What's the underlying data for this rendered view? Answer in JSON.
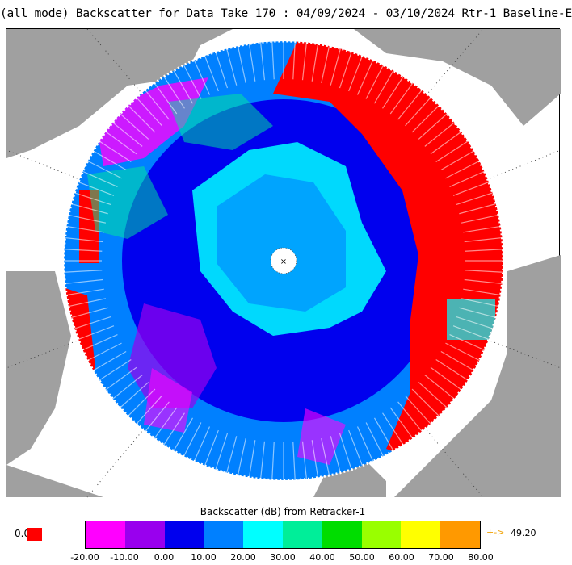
{
  "title": "(all mode) Backscatter for Data Take 170 : 04/09/2024 - 03/10/2024 Rtr-1 Baseline-E",
  "colors": {
    "land": "#a0a0a0",
    "ocean": "#ffffff",
    "open_water_high": "#ff0000",
    "pole_hole": "#ffffff"
  },
  "legend": {
    "title": "Backscatter (dB) from Retracker-1",
    "zero_label": "0.0",
    "zero_color": "#ff0000",
    "over_arrow": "+->",
    "over_value": "49.20",
    "ticks": [
      "-20.00",
      "-10.00",
      "0.00",
      "10.00",
      "20.00",
      "30.00",
      "40.00",
      "50.00",
      "60.00",
      "70.00",
      "80.00"
    ],
    "colors": [
      "#ff00ff",
      "#9900ee",
      "#0000ee",
      "#0080ff",
      "#00ffff",
      "#00ee99",
      "#00dd00",
      "#99ff00",
      "#ffff00",
      "#ff9900"
    ]
  },
  "map_markers": {
    "pole": "×"
  }
}
